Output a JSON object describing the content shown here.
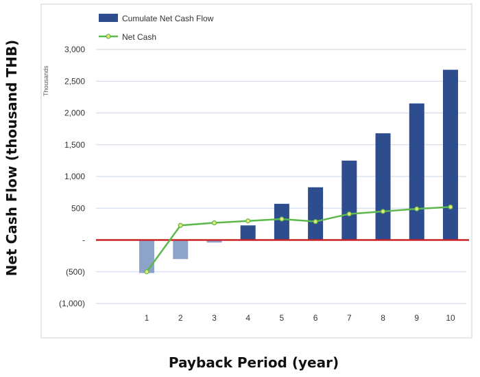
{
  "chart_data": {
    "type": "bar+line",
    "xlabel": "Payback Period (year)",
    "ylabel": "Net Cash Flow (thousand THB)",
    "units_label": "Thousands",
    "categories": [
      "1",
      "2",
      "3",
      "4",
      "5",
      "6",
      "7",
      "8",
      "9",
      "10"
    ],
    "ylim": [
      -1000,
      3000
    ],
    "yticks": [
      3000,
      2500,
      2000,
      1500,
      1000,
      500,
      0,
      -500,
      -1000
    ],
    "ytick_labels": [
      "3,000",
      "2,500",
      "2,000",
      "1,500",
      "1,000",
      "500",
      "-",
      "(500)",
      "(1,000)"
    ],
    "legend_position": "top-left",
    "grid": true,
    "series": [
      {
        "name": "Cumulate Net Cash Flow",
        "type": "bar",
        "values": [
          -520,
          -300,
          -40,
          230,
          570,
          830,
          1250,
          1680,
          2150,
          2680
        ],
        "color": "#2e4d8f",
        "negative_color": "#8ea3cc"
      },
      {
        "name": "Net Cash",
        "type": "line",
        "values": [
          -500,
          230,
          270,
          300,
          330,
          290,
          410,
          450,
          490,
          520
        ],
        "color": "#5cb84a",
        "marker_color": "#e6e67a"
      }
    ],
    "zero_line_color": "#cc2222"
  }
}
